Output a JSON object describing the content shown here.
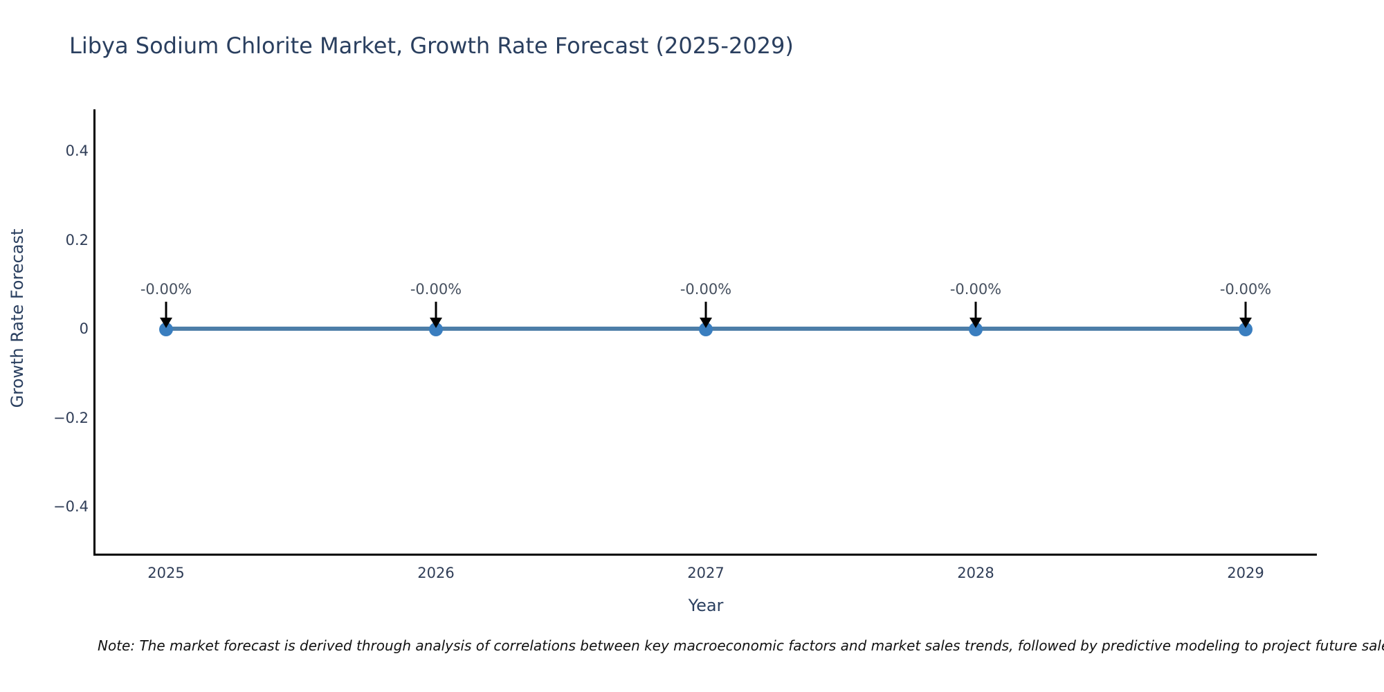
{
  "title": "Libya Sodium Chlorite Market, Growth Rate Forecast (2025-2029)",
  "note": "Note: The market forecast is derived through analysis of correlations between key macroeconomic factors and market sales trends, followed by predictive modeling to project future sales.",
  "chart_data": {
    "type": "line",
    "title": "Libya Sodium Chlorite Market, Growth Rate Forecast (2025-2029)",
    "xlabel": "Year",
    "ylabel": "Growth Rate Forecast",
    "x": [
      2025,
      2026,
      2027,
      2028,
      2029
    ],
    "series": [
      {
        "name": "Growth Rate Forecast",
        "values": [
          0,
          0,
          0,
          0,
          0
        ]
      }
    ],
    "point_labels": [
      "-0.00%",
      "-0.00%",
      "-0.00%",
      "-0.00%",
      "-0.00%"
    ],
    "xticks": [
      {
        "value": 2025,
        "label": "2025"
      },
      {
        "value": 2026,
        "label": "2026"
      },
      {
        "value": 2027,
        "label": "2027"
      },
      {
        "value": 2028,
        "label": "2028"
      },
      {
        "value": 2029,
        "label": "2029"
      }
    ],
    "yticks": [
      {
        "value": 0.4,
        "label": "0.4"
      },
      {
        "value": 0.2,
        "label": "0.2"
      },
      {
        "value": 0,
        "label": "0"
      },
      {
        "value": -0.2,
        "label": "−0.2"
      },
      {
        "value": -0.4,
        "label": "−0.4"
      }
    ],
    "ylim": [
      -0.5,
      0.5
    ],
    "grid": false,
    "legend": "none",
    "annotation_arrows": true,
    "colors": {
      "line": "#4d7ea8",
      "marker": "#3a7ebf",
      "arrow": "#000000",
      "axis": "#000000",
      "title_text": "#2a3f5f",
      "tick_text": "#2f3d57",
      "annotation_text": "#46505f",
      "note_text": "#111111"
    }
  }
}
